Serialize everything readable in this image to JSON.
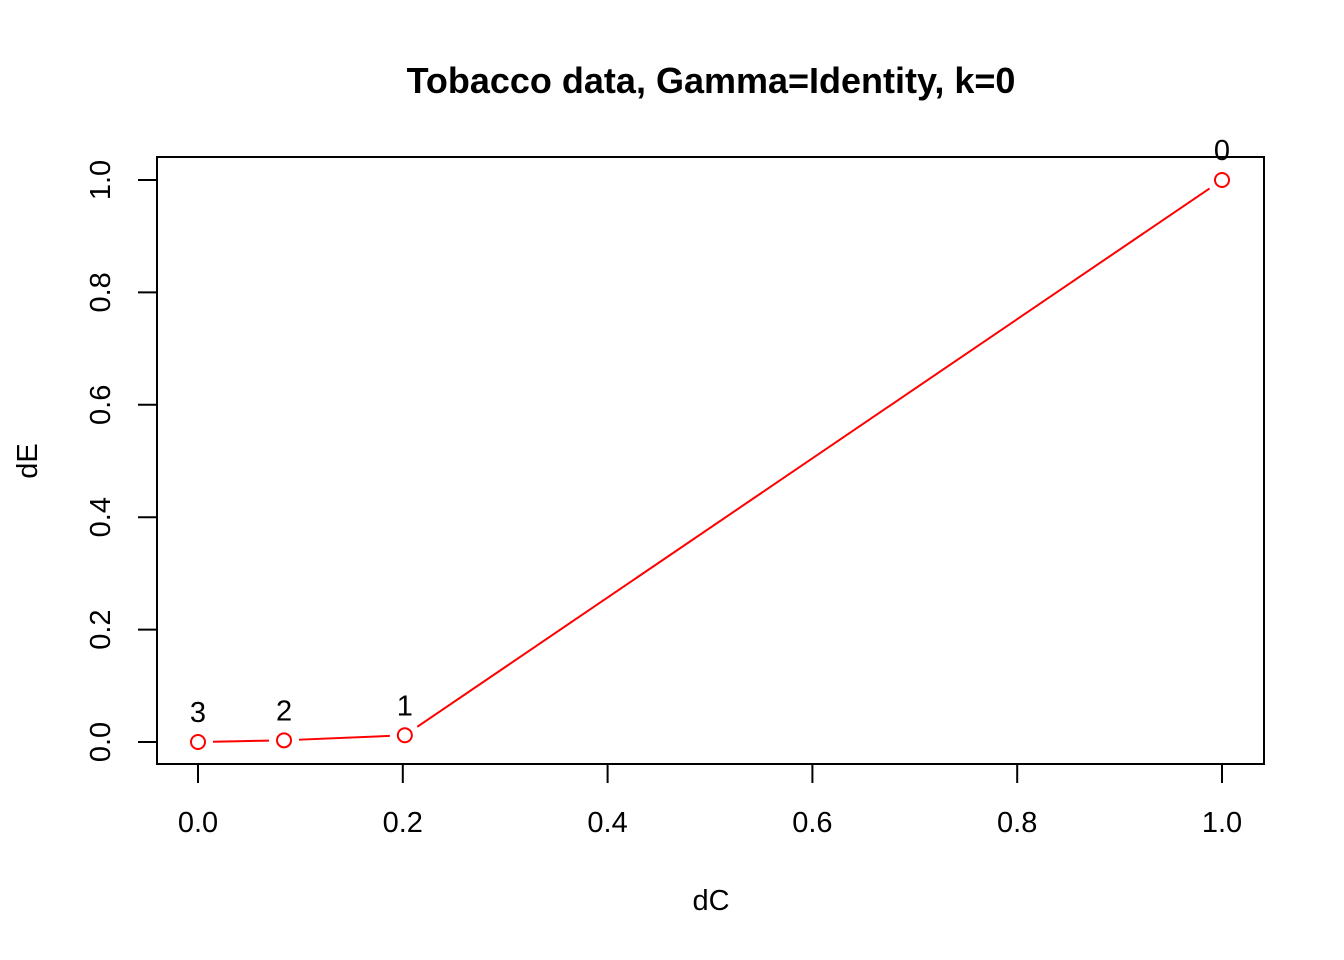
{
  "chart_data": {
    "type": "line",
    "title": "Tobacco data, Gamma=Identity, k=0",
    "xlabel": "dC",
    "ylabel": "dE",
    "xlim": [
      0.0,
      1.0
    ],
    "ylim": [
      0.0,
      1.0
    ],
    "x_ticks": [
      "0.0",
      "0.2",
      "0.4",
      "0.6",
      "0.8",
      "1.0"
    ],
    "y_ticks": [
      "0.0",
      "0.2",
      "0.4",
      "0.6",
      "0.8",
      "1.0"
    ],
    "grid": false,
    "legend": "none",
    "series": [
      {
        "color": "#ff0000",
        "points": [
          {
            "x": 0.0,
            "y": 0.0,
            "label": "3"
          },
          {
            "x": 0.084,
            "y": 0.003,
            "label": "2"
          },
          {
            "x": 0.202,
            "y": 0.012,
            "label": "1"
          },
          {
            "x": 1.0,
            "y": 1.0,
            "label": "0"
          }
        ]
      }
    ]
  }
}
